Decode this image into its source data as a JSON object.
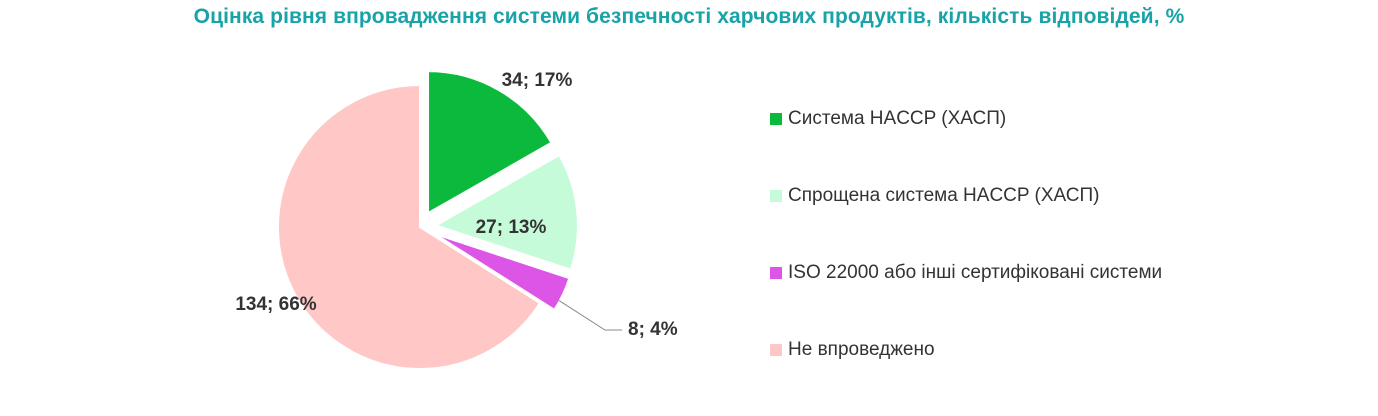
{
  "chart_data": {
    "type": "pie",
    "title": "Оцінка рівня впровадження системи безпечності харчових продуктів, кількість відповідей, %",
    "legend_position": "right",
    "slices": [
      {
        "label": "Система HACCP (ХАСП)",
        "value": 34,
        "percent": 17,
        "data_label": "34; 17%",
        "color": "#0bba3c",
        "exploded": true
      },
      {
        "label": "Спрощена система HACCP (ХАСП)",
        "value": 27,
        "percent": 13,
        "data_label": "27; 13%",
        "color": "#c6fbd9",
        "exploded": true
      },
      {
        "label": "ISO 22000 або інші сертифіковані системи",
        "value": 8,
        "percent": 4,
        "data_label": "8; 4%",
        "color": "#dd55e6",
        "exploded": true
      },
      {
        "label": "Не впроведжено",
        "value": 134,
        "percent": 66,
        "data_label": "134; 66%",
        "color": "#ffc7c6",
        "exploded": false
      }
    ]
  }
}
